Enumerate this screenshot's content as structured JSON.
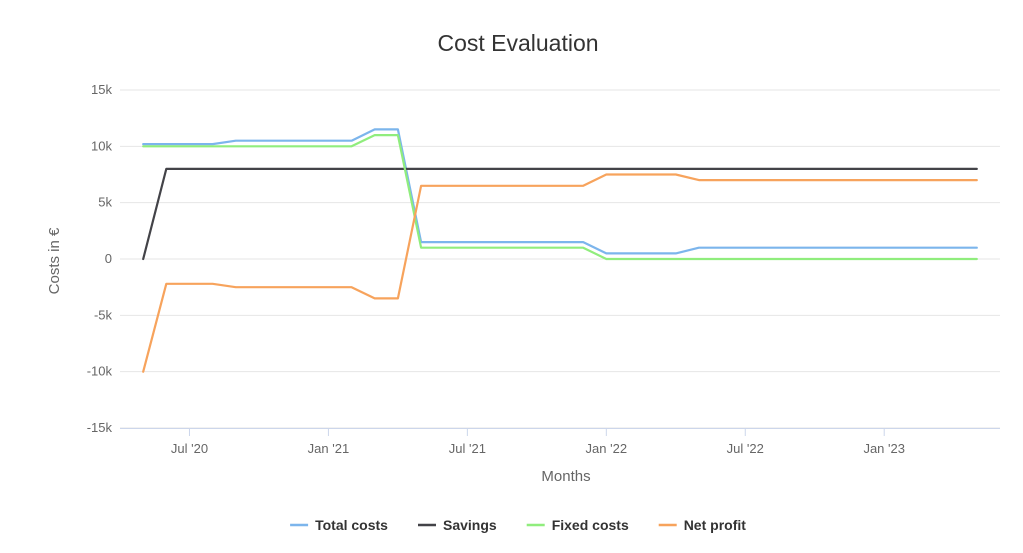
{
  "chart_data": {
    "type": "line",
    "title": "Cost Evaluation",
    "xlabel": "Months",
    "ylabel": "Costs in €",
    "ylim": [
      -15000,
      15000
    ],
    "y_ticks": [
      {
        "value": 15000,
        "label": "15k"
      },
      {
        "value": 10000,
        "label": "10k"
      },
      {
        "value": 5000,
        "label": "5k"
      },
      {
        "value": 0,
        "label": "0"
      },
      {
        "value": -5000,
        "label": "-5k"
      },
      {
        "value": -10000,
        "label": "-10k"
      },
      {
        "value": -15000,
        "label": "-15k"
      }
    ],
    "x_ticks": [
      {
        "value": "2020-07",
        "label": "Jul '20"
      },
      {
        "value": "2021-01",
        "label": "Jan '21"
      },
      {
        "value": "2021-07",
        "label": "Jul '21"
      },
      {
        "value": "2022-01",
        "label": "Jan '22"
      },
      {
        "value": "2022-07",
        "label": "Jul '22"
      },
      {
        "value": "2023-01",
        "label": "Jan '23"
      }
    ],
    "xlim": [
      "2020-04",
      "2023-06"
    ],
    "grid": "horizontal",
    "legend_position": "bottom",
    "x": [
      "2020-05",
      "2020-06",
      "2020-07",
      "2020-08",
      "2020-09",
      "2020-10",
      "2020-11",
      "2020-12",
      "2021-01",
      "2021-02",
      "2021-03",
      "2021-04",
      "2021-05",
      "2021-06",
      "2021-07",
      "2021-08",
      "2021-09",
      "2021-10",
      "2021-11",
      "2021-12",
      "2022-01",
      "2022-02",
      "2022-03",
      "2022-04",
      "2022-05",
      "2022-06",
      "2022-07",
      "2022-08",
      "2022-09",
      "2022-10",
      "2022-11",
      "2022-12",
      "2023-01",
      "2023-02",
      "2023-03",
      "2023-04",
      "2023-05"
    ],
    "series": [
      {
        "name": "Total costs",
        "color": "#7cb5ec",
        "values": [
          10200,
          10200,
          10200,
          10200,
          10500,
          10500,
          10500,
          10500,
          10500,
          10500,
          11500,
          11500,
          1500,
          1500,
          1500,
          1500,
          1500,
          1500,
          1500,
          1500,
          500,
          500,
          500,
          500,
          1000,
          1000,
          1000,
          1000,
          1000,
          1000,
          1000,
          1000,
          1000,
          1000,
          1000,
          1000,
          1000
        ]
      },
      {
        "name": "Savings",
        "color": "#434348",
        "values": [
          0,
          8000,
          8000,
          8000,
          8000,
          8000,
          8000,
          8000,
          8000,
          8000,
          8000,
          8000,
          8000,
          8000,
          8000,
          8000,
          8000,
          8000,
          8000,
          8000,
          8000,
          8000,
          8000,
          8000,
          8000,
          8000,
          8000,
          8000,
          8000,
          8000,
          8000,
          8000,
          8000,
          8000,
          8000,
          8000,
          8000
        ]
      },
      {
        "name": "Fixed costs",
        "color": "#90ed7d",
        "values": [
          10000,
          10000,
          10000,
          10000,
          10000,
          10000,
          10000,
          10000,
          10000,
          10000,
          11000,
          11000,
          1000,
          1000,
          1000,
          1000,
          1000,
          1000,
          1000,
          1000,
          0,
          0,
          0,
          0,
          0,
          0,
          0,
          0,
          0,
          0,
          0,
          0,
          0,
          0,
          0,
          0,
          0
        ]
      },
      {
        "name": "Net profit",
        "color": "#f7a35c",
        "values": [
          -10000,
          -2200,
          -2200,
          -2200,
          -2500,
          -2500,
          -2500,
          -2500,
          -2500,
          -2500,
          -3500,
          -3500,
          6500,
          6500,
          6500,
          6500,
          6500,
          6500,
          6500,
          6500,
          7500,
          7500,
          7500,
          7500,
          7000,
          7000,
          7000,
          7000,
          7000,
          7000,
          7000,
          7000,
          7000,
          7000,
          7000,
          7000,
          7000
        ]
      }
    ]
  }
}
